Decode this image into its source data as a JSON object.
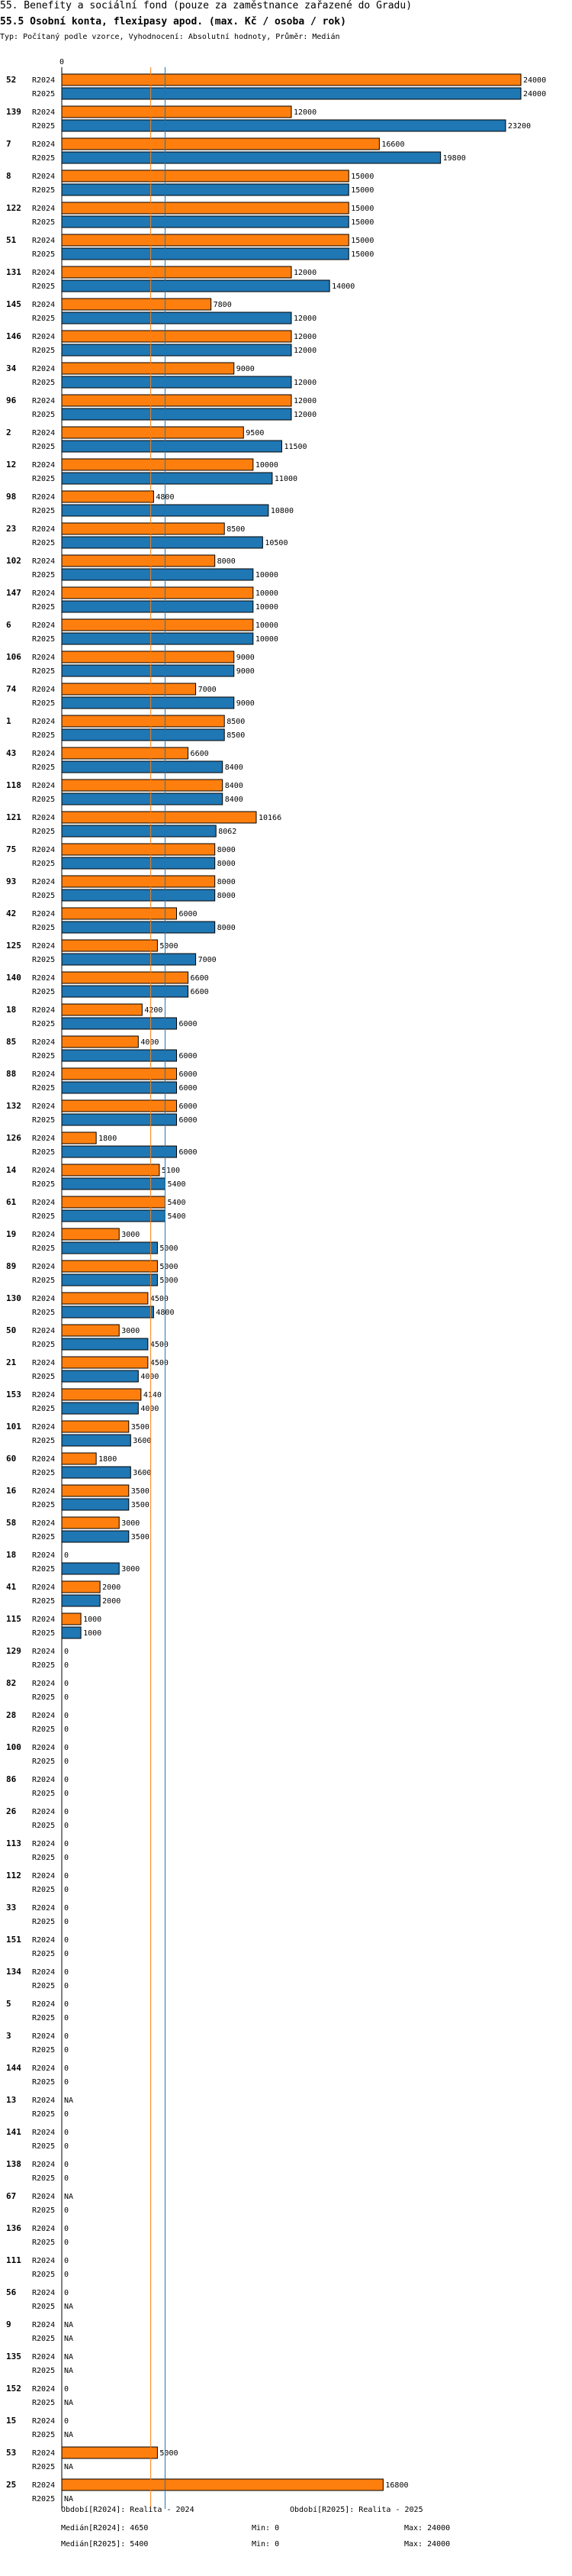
{
  "header": {
    "title": "55. Benefity a sociální fond (pouze za zaměstnance zařazené do Gradu)",
    "subtitle": "55.5 Osobní konta, flexipasy apod. (max. Kč / osoba / rok)",
    "type_line": "Typ: Počítaný podle vzorce, Vyhodnocení: Absolutní hodnoty, Průměr: Medián"
  },
  "chart_data": {
    "type": "bar",
    "orientation": "horizontal",
    "axis_zero_label": "0",
    "xlim": [
      0,
      24000
    ],
    "series": [
      {
        "name": "R2024",
        "color": "#ff7f0e"
      },
      {
        "name": "R2025",
        "color": "#1f77b4"
      }
    ],
    "groups": [
      {
        "id": "52",
        "R2024": 24000,
        "R2025": 24000
      },
      {
        "id": "139",
        "R2024": 12000,
        "R2025": 23200
      },
      {
        "id": "7",
        "R2024": 16600,
        "R2025": 19800
      },
      {
        "id": "8",
        "R2024": 15000,
        "R2025": 15000
      },
      {
        "id": "122",
        "R2024": 15000,
        "R2025": 15000
      },
      {
        "id": "51",
        "R2024": 15000,
        "R2025": 15000
      },
      {
        "id": "131",
        "R2024": 12000,
        "R2025": 14000
      },
      {
        "id": "145",
        "R2024": 7800,
        "R2025": 12000
      },
      {
        "id": "146",
        "R2024": 12000,
        "R2025": 12000
      },
      {
        "id": "34",
        "R2024": 9000,
        "R2025": 12000
      },
      {
        "id": "96",
        "R2024": 12000,
        "R2025": 12000
      },
      {
        "id": "2",
        "R2024": 9500,
        "R2025": 11500
      },
      {
        "id": "12",
        "R2024": 10000,
        "R2025": 11000
      },
      {
        "id": "98",
        "R2024": 4800,
        "R2025": 10800
      },
      {
        "id": "23",
        "R2024": 8500,
        "R2025": 10500
      },
      {
        "id": "102",
        "R2024": 8000,
        "R2025": 10000
      },
      {
        "id": "147",
        "R2024": 10000,
        "R2025": 10000
      },
      {
        "id": "6",
        "R2024": 10000,
        "R2025": 10000
      },
      {
        "id": "106",
        "R2024": 9000,
        "R2025": 9000
      },
      {
        "id": "74",
        "R2024": 7000,
        "R2025": 9000
      },
      {
        "id": "1",
        "R2024": 8500,
        "R2025": 8500
      },
      {
        "id": "43",
        "R2024": 6600,
        "R2025": 8400
      },
      {
        "id": "118",
        "R2024": 8400,
        "R2025": 8400
      },
      {
        "id": "121",
        "R2024": 10166,
        "R2025": 8062
      },
      {
        "id": "75",
        "R2024": 8000,
        "R2025": 8000
      },
      {
        "id": "93",
        "R2024": 8000,
        "R2025": 8000
      },
      {
        "id": "42",
        "R2024": 6000,
        "R2025": 8000
      },
      {
        "id": "125",
        "R2024": 5000,
        "R2025": 7000
      },
      {
        "id": "140",
        "R2024": 6600,
        "R2025": 6600
      },
      {
        "id": "18",
        "R2024": 4200,
        "R2025": 6000
      },
      {
        "id": "85",
        "R2024": 4000,
        "R2025": 6000
      },
      {
        "id": "88",
        "R2024": 6000,
        "R2025": 6000
      },
      {
        "id": "132",
        "R2024": 6000,
        "R2025": 6000
      },
      {
        "id": "126",
        "R2024": 1800,
        "R2025": 6000
      },
      {
        "id": "14",
        "R2024": 5100,
        "R2025": 5400
      },
      {
        "id": "61",
        "R2024": 5400,
        "R2025": 5400
      },
      {
        "id": "19",
        "R2024": 3000,
        "R2025": 5000
      },
      {
        "id": "89",
        "R2024": 5000,
        "R2025": 5000
      },
      {
        "id": "130",
        "R2024": 4500,
        "R2025": 4800
      },
      {
        "id": "50",
        "R2024": 3000,
        "R2025": 4500
      },
      {
        "id": "21",
        "R2024": 4500,
        "R2025": 4000
      },
      {
        "id": "153",
        "R2024": 4140,
        "R2025": 4000
      },
      {
        "id": "101",
        "R2024": 3500,
        "R2025": 3600
      },
      {
        "id": "60",
        "R2024": 1800,
        "R2025": 3600
      },
      {
        "id": "16",
        "R2024": 3500,
        "R2025": 3500
      },
      {
        "id": "58",
        "R2024": 3000,
        "R2025": 3500
      },
      {
        "id": "18",
        "R2024": 0,
        "R2025": 3000
      },
      {
        "id": "41",
        "R2024": 2000,
        "R2025": 2000
      },
      {
        "id": "115",
        "R2024": 1000,
        "R2025": 1000
      },
      {
        "id": "129",
        "R2024": 0,
        "R2025": 0
      },
      {
        "id": "82",
        "R2024": 0,
        "R2025": 0
      },
      {
        "id": "28",
        "R2024": 0,
        "R2025": 0
      },
      {
        "id": "100",
        "R2024": 0,
        "R2025": 0
      },
      {
        "id": "86",
        "R2024": 0,
        "R2025": 0
      },
      {
        "id": "26",
        "R2024": 0,
        "R2025": 0
      },
      {
        "id": "113",
        "R2024": 0,
        "R2025": 0
      },
      {
        "id": "112",
        "R2024": 0,
        "R2025": 0
      },
      {
        "id": "33",
        "R2024": 0,
        "R2025": 0
      },
      {
        "id": "151",
        "R2024": 0,
        "R2025": 0
      },
      {
        "id": "134",
        "R2024": 0,
        "R2025": 0
      },
      {
        "id": "5",
        "R2024": 0,
        "R2025": 0
      },
      {
        "id": "3",
        "R2024": 0,
        "R2025": 0
      },
      {
        "id": "144",
        "R2024": 0,
        "R2025": 0
      },
      {
        "id": "13",
        "R2024": "NA",
        "R2025": 0
      },
      {
        "id": "141",
        "R2024": 0,
        "R2025": 0
      },
      {
        "id": "138",
        "R2024": 0,
        "R2025": 0
      },
      {
        "id": "67",
        "R2024": "NA",
        "R2025": 0
      },
      {
        "id": "136",
        "R2024": 0,
        "R2025": 0
      },
      {
        "id": "111",
        "R2024": 0,
        "R2025": 0
      },
      {
        "id": "56",
        "R2024": 0,
        "R2025": "NA"
      },
      {
        "id": "9",
        "R2024": "NA",
        "R2025": "NA"
      },
      {
        "id": "135",
        "R2024": "NA",
        "R2025": "NA"
      },
      {
        "id": "152",
        "R2024": 0,
        "R2025": "NA"
      },
      {
        "id": "15",
        "R2024": 0,
        "R2025": "NA"
      },
      {
        "id": "53",
        "R2024": 5000,
        "R2025": "NA"
      },
      {
        "id": "25",
        "R2024": 16800,
        "R2025": "NA"
      }
    ],
    "median_lines": [
      {
        "series": "R2024",
        "value": 4650,
        "color": "#ff7f0e"
      },
      {
        "series": "R2025",
        "value": 5400,
        "color": "#1f77b4"
      }
    ]
  },
  "footer": {
    "col1": {
      "period": "Období[R2024]: Realita - 2024",
      "median": "Medián[R2024]: 4650",
      "median_2025": "Medián[R2025]: 5400"
    },
    "col2": {
      "period": "Období[R2025]: Realita - 2025",
      "min_2024": "Min: 0",
      "max_2024": "Max: 24000",
      "min_2025": "Min: 0",
      "max_2025": "Max: 24000"
    }
  }
}
